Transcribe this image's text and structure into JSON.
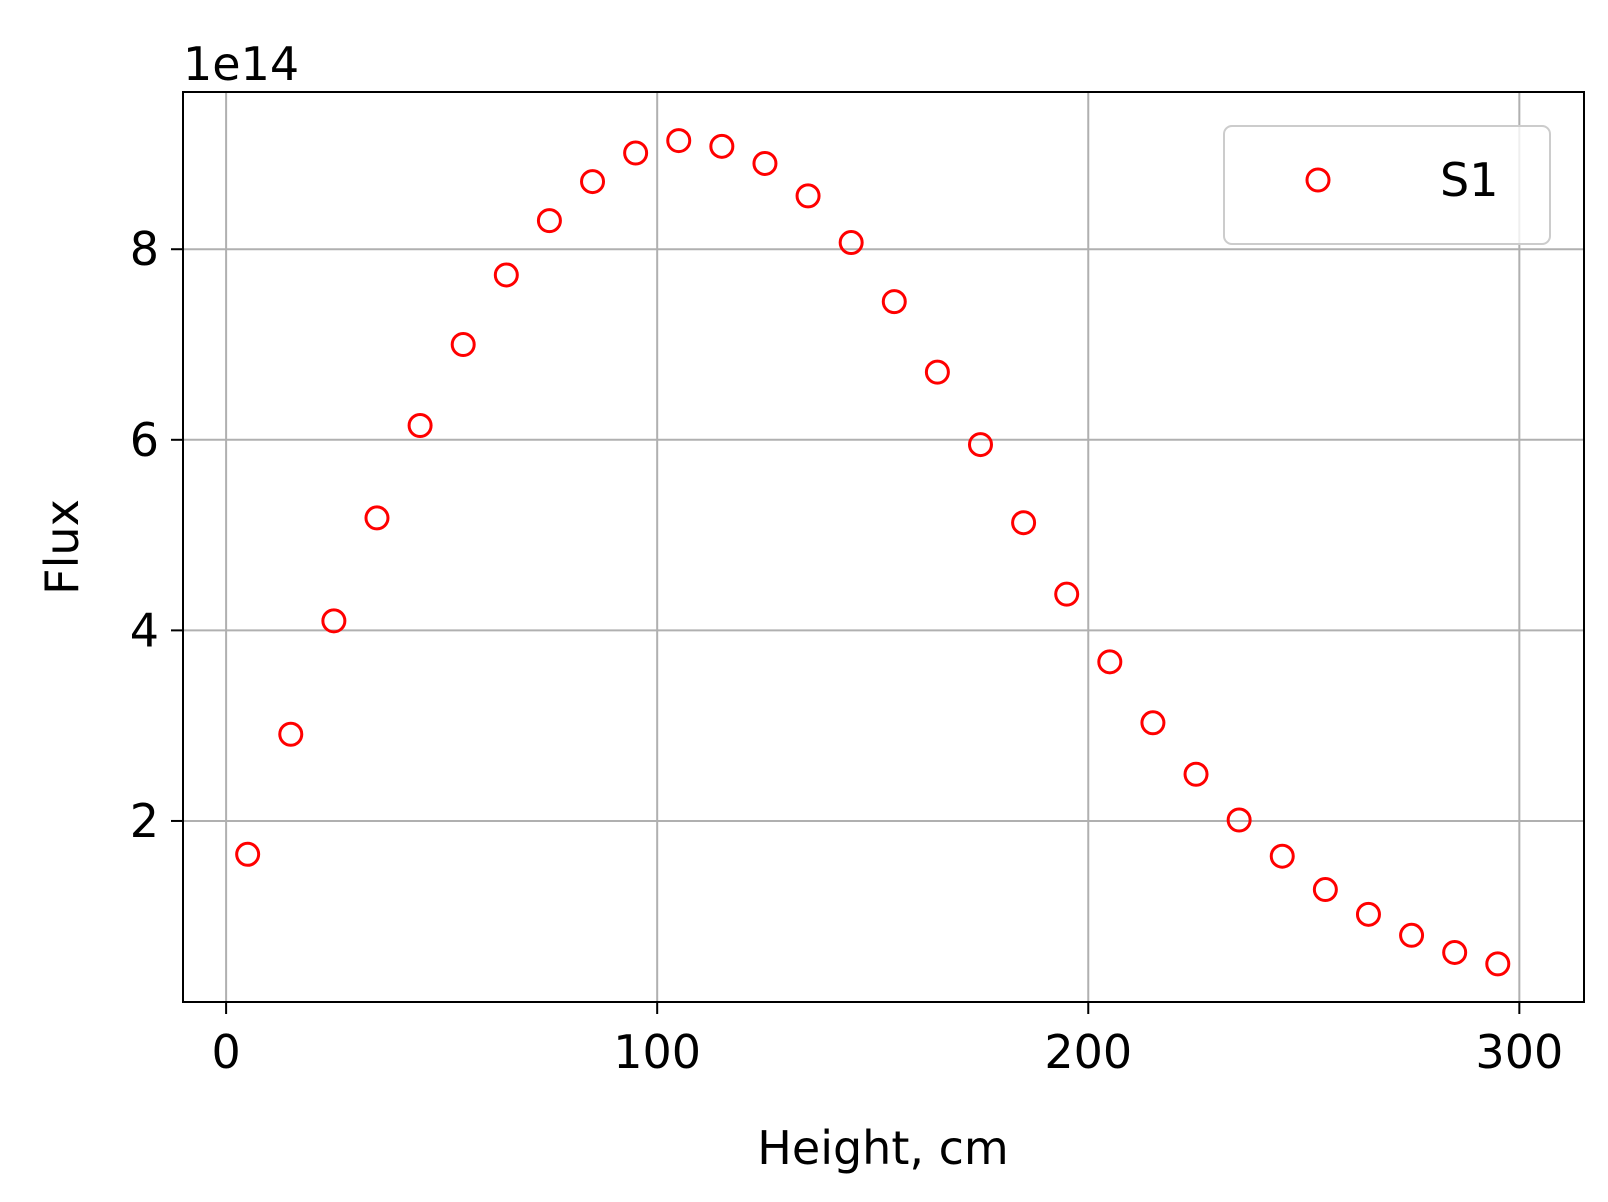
{
  "chart_data": {
    "type": "scatter",
    "xlabel": "Height, cm",
    "ylabel": "Flux",
    "y_offset_label": "1e14",
    "y_scale_factor": 100000000000000.0,
    "xlim": [
      -10,
      315
    ],
    "ylim": [
      0.1,
      9.65
    ],
    "xticks": [
      0,
      100,
      200,
      300
    ],
    "xtick_labels": [
      "0",
      "100",
      "200",
      "300"
    ],
    "yticks": [
      2,
      4,
      6,
      8
    ],
    "ytick_labels": [
      "2",
      "4",
      "6",
      "8"
    ],
    "grid": true,
    "legend_position": "top-right",
    "series": [
      {
        "name": "S1",
        "color": "#ff0000",
        "marker": "open-circle",
        "x": [
          5,
          15,
          25,
          35,
          45,
          55,
          65,
          75,
          85,
          95,
          105,
          115,
          125,
          135,
          145,
          155,
          165,
          175,
          185,
          195,
          205,
          215,
          225,
          235,
          245,
          255,
          265,
          275,
          285,
          295
        ],
        "y": [
          1.65,
          2.91,
          4.1,
          5.18,
          6.15,
          7.0,
          7.73,
          8.3,
          8.71,
          9.01,
          9.14,
          9.08,
          8.9,
          8.56,
          8.07,
          7.45,
          6.71,
          5.95,
          5.13,
          4.38,
          3.67,
          3.03,
          2.49,
          2.01,
          1.63,
          1.28,
          1.02,
          0.8,
          0.62,
          0.5
        ]
      }
    ]
  }
}
